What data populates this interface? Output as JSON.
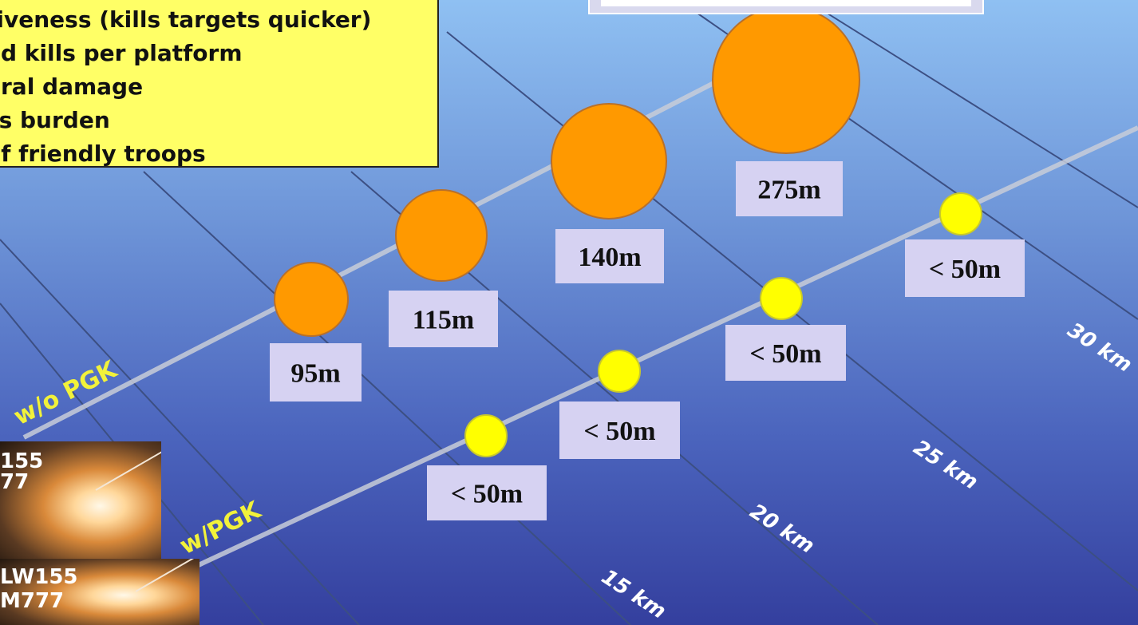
{
  "benefits": {
    "lines": [
      "tiveness (kills targets quicker)",
      "ed kills per platform",
      "eral damage",
      "cs burden",
      "of friendly troops"
    ]
  },
  "range_labels": [
    "15 km",
    "20 km",
    "25 km",
    "30 km"
  ],
  "series": {
    "without_pgk": {
      "label": "w/o PGK",
      "color": "#ff9900",
      "points": [
        {
          "range_km": 15,
          "cep": "95m"
        },
        {
          "range_km": 20,
          "cep": "115m"
        },
        {
          "range_km": 25,
          "cep": "140m"
        },
        {
          "range_km": 30,
          "cep": "275m"
        }
      ]
    },
    "with_pgk": {
      "label": "w/PGK",
      "color": "#ffff00",
      "points": [
        {
          "range_km": 15,
          "cep": "< 50m"
        },
        {
          "range_km": 20,
          "cep": "< 50m"
        },
        {
          "range_km": 25,
          "cep": "< 50m"
        },
        {
          "range_km": 30,
          "cep": "< 50m"
        }
      ]
    }
  },
  "photos": [
    {
      "line1": "155",
      "line2": "77"
    },
    {
      "line1": "LW155",
      "line2": "M777"
    }
  ],
  "colors": {
    "background_top": "#8fc0f2",
    "background_bottom": "#343f9e",
    "label_box": "#d6d2f2",
    "benefits_box": "#ffff66",
    "pgk_text": "#f2f23a"
  }
}
